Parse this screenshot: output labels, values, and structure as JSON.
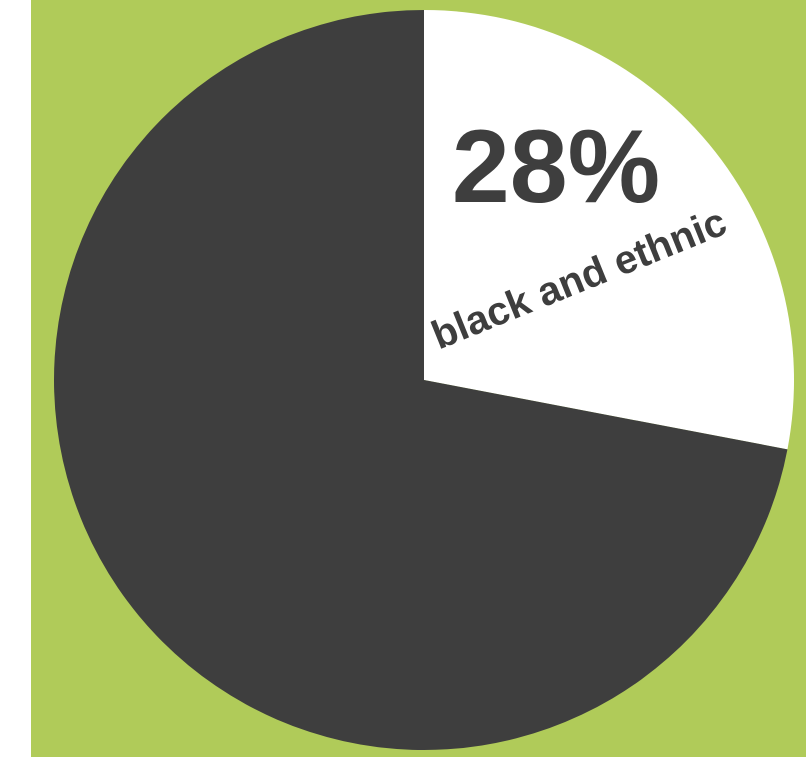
{
  "colors": {
    "background": "#b0cb59",
    "slice_highlight": "#ffffff",
    "slice_rest": "#3e3e3e",
    "label_text": "#3e3e3e"
  },
  "chart_data": {
    "type": "pie",
    "slices": [
      {
        "name": "black and ethnic",
        "value": 28,
        "label": "28%",
        "color": "#ffffff"
      },
      {
        "name": "",
        "value": 72,
        "color": "#3e3e3e"
      }
    ]
  }
}
